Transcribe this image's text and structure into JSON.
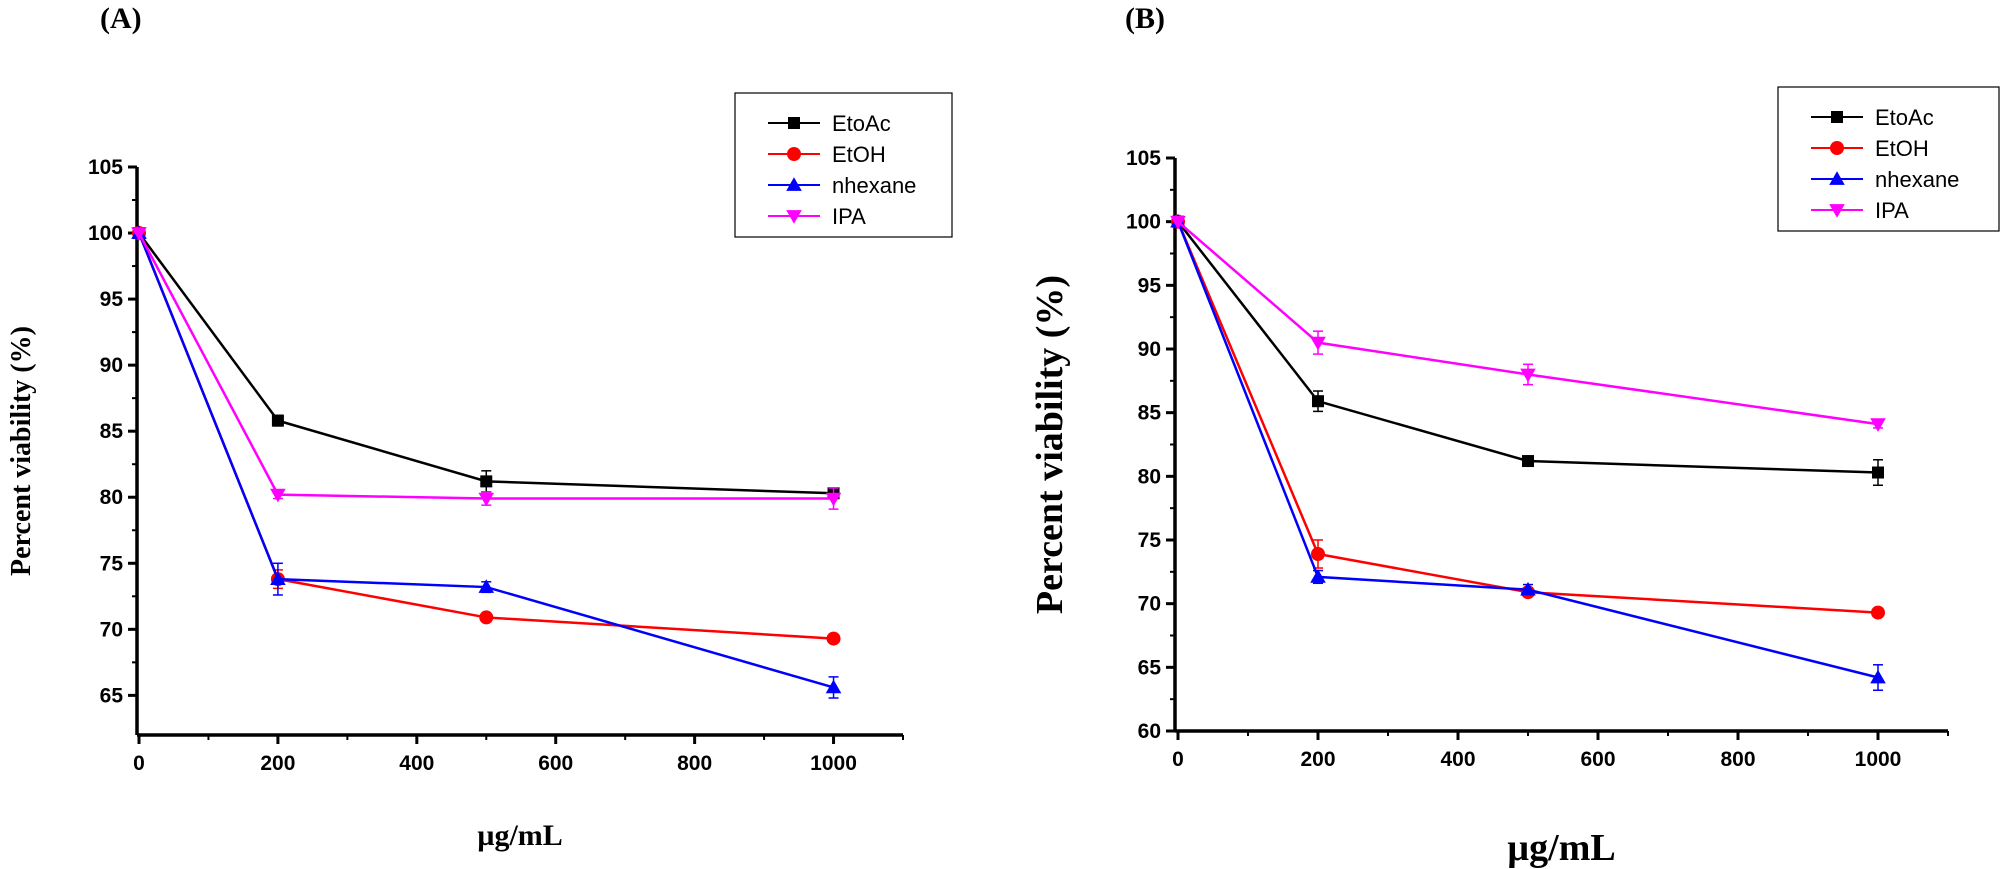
{
  "chart_data": [
    {
      "panel_label": "(A)",
      "type": "line",
      "title": "",
      "xlabel": "µg/mL",
      "ylabel": "Percent viability (%)",
      "x": [
        0,
        200,
        500,
        1000
      ],
      "xlim": [
        0,
        1100
      ],
      "ylim": [
        62,
        105
      ],
      "xticks": [
        0,
        200,
        400,
        600,
        800,
        1000
      ],
      "yticks": [
        65,
        70,
        75,
        80,
        85,
        90,
        95,
        100,
        105
      ],
      "legend_position": "top-right",
      "series": [
        {
          "name": "EtoAc",
          "color": "#000000",
          "marker": "square",
          "values": [
            100,
            85.8,
            81.2,
            80.3
          ],
          "errors": [
            0,
            0.4,
            0.8,
            0.3
          ]
        },
        {
          "name": "EtOH",
          "color": "#ff0000",
          "marker": "circle",
          "values": [
            100,
            73.8,
            70.9,
            69.3
          ],
          "errors": [
            0,
            0.7,
            0.3,
            0.3
          ]
        },
        {
          "name": "nhexane",
          "color": "#0000ff",
          "marker": "triangle-up",
          "values": [
            100,
            73.8,
            73.2,
            65.6
          ],
          "errors": [
            0,
            1.2,
            0.4,
            0.8
          ]
        },
        {
          "name": "IPA",
          "color": "#ff00ff",
          "marker": "triangle-down",
          "values": [
            100,
            80.2,
            79.9,
            79.9
          ],
          "errors": [
            0,
            0.3,
            0.5,
            0.8
          ]
        }
      ]
    },
    {
      "panel_label": "(B)",
      "type": "line",
      "title": "",
      "xlabel": "µg/mL",
      "ylabel": "Percent viability (%)",
      "x": [
        0,
        200,
        500,
        1000
      ],
      "xlim": [
        0,
        1100
      ],
      "ylim": [
        60,
        105
      ],
      "xticks": [
        0,
        200,
        400,
        600,
        800,
        1000
      ],
      "yticks": [
        60,
        65,
        70,
        75,
        80,
        85,
        90,
        95,
        100,
        105
      ],
      "legend_position": "top-right",
      "series": [
        {
          "name": "EtoAc",
          "color": "#000000",
          "marker": "square",
          "values": [
            100,
            85.9,
            81.2,
            80.3
          ],
          "errors": [
            0,
            0.8,
            0.3,
            1.0
          ]
        },
        {
          "name": "EtOH",
          "color": "#ff0000",
          "marker": "circle",
          "values": [
            100,
            73.9,
            70.9,
            69.3
          ],
          "errors": [
            0,
            1.1,
            0.3,
            0.3
          ]
        },
        {
          "name": "nhexane",
          "color": "#0000ff",
          "marker": "triangle-up",
          "values": [
            100,
            72.1,
            71.1,
            64.2
          ],
          "errors": [
            0,
            0.5,
            0.4,
            1.0
          ]
        },
        {
          "name": "IPA",
          "color": "#ff00ff",
          "marker": "triangle-down",
          "values": [
            100,
            90.5,
            88.0,
            84.1
          ],
          "errors": [
            0,
            0.9,
            0.8,
            0.3
          ]
        }
      ]
    }
  ]
}
